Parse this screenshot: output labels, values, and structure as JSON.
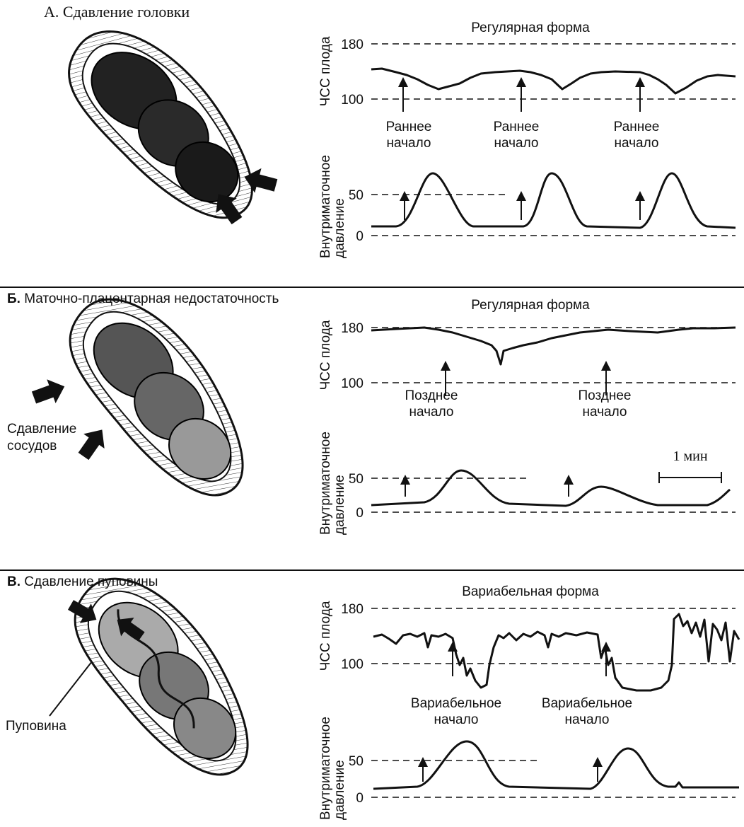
{
  "panels": [
    {
      "letter": "А.",
      "title": "Сдавление головки",
      "fhr_title": "Регулярная форма",
      "fhr_label": "ЧСС плода",
      "pressure_label": [
        "Внутриматочное",
        "давление"
      ],
      "fhr_ticks": [
        "180",
        "100"
      ],
      "pressure_ticks": [
        "50",
        "0"
      ],
      "annotations": [
        [
          "Раннее",
          "начало"
        ],
        [
          "Раннее",
          "начало"
        ],
        [
          "Раннее",
          "начало"
        ]
      ]
    },
    {
      "letter": "Б.",
      "title": "Маточно-плацентарная недостаточность",
      "fhr_title": "Регулярная форма",
      "fhr_label": "ЧСС плода",
      "pressure_label": [
        "Внутриматочное",
        "давление"
      ],
      "fhr_ticks": [
        "180",
        "100"
      ],
      "pressure_ticks": [
        "50",
        "0"
      ],
      "annotations": [
        [
          "Позднее",
          "начало"
        ],
        [
          "Позднее",
          "начало"
        ]
      ],
      "illustration_label": [
        "Сдавление",
        "сосудов"
      ],
      "scale_label": "1 мин"
    },
    {
      "letter": "В.",
      "title": "Сдавление пуповины",
      "fhr_title": "Вариабельная форма",
      "fhr_label": "ЧСС плода",
      "pressure_label": [
        "Внутриматочное",
        "давление"
      ],
      "fhr_ticks": [
        "180",
        "100"
      ],
      "pressure_ticks": [
        "50",
        "0"
      ],
      "annotations": [
        [
          "Вариабельное",
          "начало"
        ],
        [
          "Вариабельное",
          "начало"
        ]
      ],
      "illustration_label": [
        "Пуповина"
      ]
    }
  ]
}
